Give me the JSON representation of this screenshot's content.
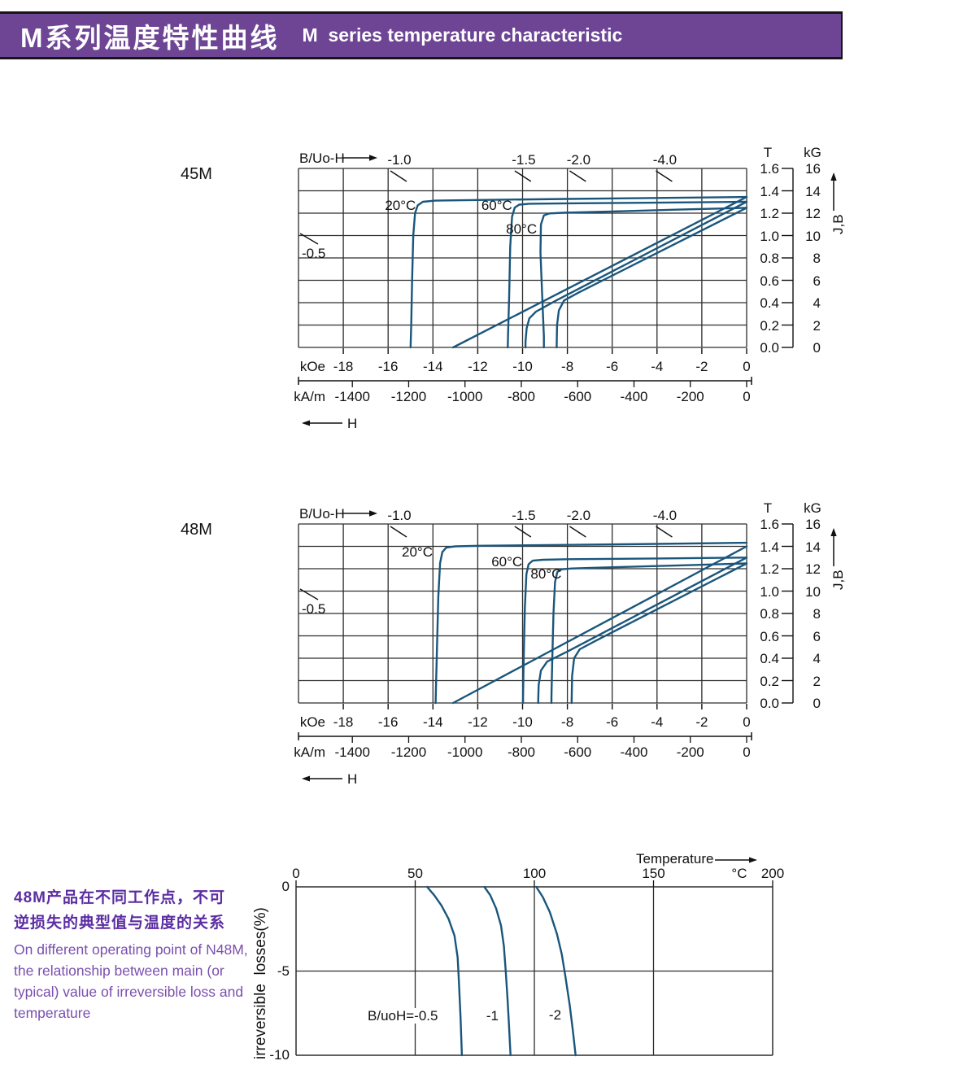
{
  "header": {
    "title_zh": "M系列温度特性曲线",
    "title_en": "M  series temperature characteristic"
  },
  "colors": {
    "banner_bg": "#6e4595",
    "banner_text": "#ffffff",
    "curve": "#1a567c",
    "grid": "#2d2d2d",
    "axis_text": "#111111",
    "note_zh": "#5b2da2",
    "note_en": "#7a4fae"
  },
  "bh_axis": {
    "load_label": "B/Uo-H",
    "side_load_label": "-0.5",
    "x_unit_label": "kOe",
    "x_ticks": [
      -18,
      -16,
      -14,
      -12,
      -10,
      -8,
      -6,
      -4,
      -2,
      0
    ],
    "x2_unit_label": "kA/m",
    "x2_ticks": [
      -1400,
      -1200,
      -1000,
      -800,
      -600,
      -400,
      -200,
      0
    ],
    "t_header": "T",
    "t_ticks": [
      "1.6",
      "1.4",
      "1.2",
      "1.0",
      "0.8",
      "0.6",
      "0.4",
      "0.2",
      "0.0"
    ],
    "kg_header": "kG",
    "kg_ticks": [
      "16",
      "14",
      "12",
      "10",
      "8",
      "6",
      "4",
      "2",
      "0"
    ],
    "jb_label": "J,B",
    "h_label": "H"
  },
  "chart_data": [
    {
      "id": "45M",
      "type": "line",
      "title": "45M demagnetization curves (J,B vs H)",
      "grade_label": "45M",
      "x_range_kOe": [
        -20,
        0
      ],
      "y_range_T": [
        0,
        1.6
      ],
      "load_lines": [
        {
          "label": "-1.0",
          "h_kOe": -15.5
        },
        {
          "label": "-1.5",
          "h_kOe": -9.95
        },
        {
          "label": "-2.0",
          "h_kOe": -7.5
        },
        {
          "label": "-4.0",
          "h_kOe": -3.65
        }
      ],
      "temp_labels": [
        {
          "text": "20°C",
          "h": -15.45,
          "t": 1.27
        },
        {
          "text": "60°C",
          "h": -11.15,
          "t": 1.27
        },
        {
          "text": "80°C",
          "h": -10.05,
          "t": 1.06
        }
      ],
      "series": [
        {
          "name": "J-20C",
          "points": [
            [
              0,
              1.345
            ],
            [
              -4,
              1.336
            ],
            [
              -8,
              1.327
            ],
            [
              -12,
              1.318
            ],
            [
              -13.9,
              1.312
            ],
            [
              -14.45,
              1.302
            ],
            [
              -14.68,
              1.27
            ],
            [
              -14.8,
              1.2
            ],
            [
              -14.88,
              1.0
            ],
            [
              -14.93,
              0.6
            ],
            [
              -14.97,
              0.2
            ],
            [
              -15.0,
              0
            ]
          ]
        },
        {
          "name": "J-60C",
          "points": [
            [
              0,
              1.302
            ],
            [
              -4,
              1.294
            ],
            [
              -8,
              1.288
            ],
            [
              -9.7,
              1.284
            ],
            [
              -10.15,
              1.276
            ],
            [
              -10.35,
              1.25
            ],
            [
              -10.47,
              1.17
            ],
            [
              -10.55,
              0.9
            ],
            [
              -10.6,
              0.45
            ],
            [
              -10.65,
              0.1
            ],
            [
              -10.66,
              0
            ]
          ]
        },
        {
          "name": "J-80C",
          "points": [
            [
              0,
              1.248
            ],
            [
              -3,
              1.232
            ],
            [
              -6,
              1.215
            ],
            [
              -8.2,
              1.204
            ],
            [
              -8.8,
              1.198
            ],
            [
              -9.05,
              1.18
            ],
            [
              -9.18,
              1.1
            ],
            [
              -9.2,
              0.85
            ],
            [
              -9.12,
              0.45
            ],
            [
              -9.05,
              0.1
            ],
            [
              -9.05,
              0
            ]
          ]
        },
        {
          "name": "B-20C",
          "points": [
            [
              0,
              1.345
            ],
            [
              -13.1,
              0
            ]
          ]
        },
        {
          "name": "B-60C",
          "points": [
            [
              0,
              1.302
            ],
            [
              -8.5,
              0.42
            ],
            [
              -9.4,
              0.32
            ],
            [
              -9.7,
              0.26
            ],
            [
              -9.82,
              0.17
            ],
            [
              -9.87,
              0.05
            ],
            [
              -9.87,
              0
            ]
          ]
        },
        {
          "name": "B-80C",
          "points": [
            [
              0,
              1.248
            ],
            [
              -7.5,
              0.49
            ],
            [
              -8.15,
              0.42
            ],
            [
              -8.38,
              0.33
            ],
            [
              -8.46,
              0.2
            ],
            [
              -8.48,
              0
            ]
          ]
        }
      ]
    },
    {
      "id": "48M",
      "type": "line",
      "title": "48M demagnetization curves (J,B vs H)",
      "grade_label": "48M",
      "x_range_kOe": [
        -20,
        0
      ],
      "y_range_T": [
        0,
        1.6
      ],
      "load_lines": [
        {
          "label": "-1.0",
          "h_kOe": -15.5
        },
        {
          "label": "-1.5",
          "h_kOe": -9.95
        },
        {
          "label": "-2.0",
          "h_kOe": -7.5
        },
        {
          "label": "-4.0",
          "h_kOe": -3.65
        }
      ],
      "temp_labels": [
        {
          "text": "20°C",
          "h": -14.7,
          "t": 1.35
        },
        {
          "text": "60°C",
          "h": -10.7,
          "t": 1.265
        },
        {
          "text": "80°C",
          "h": -8.95,
          "t": 1.155
        }
      ],
      "series": [
        {
          "name": "J-20C",
          "points": [
            [
              0,
              1.432
            ],
            [
              -4,
              1.422
            ],
            [
              -8,
              1.413
            ],
            [
              -12,
              1.405
            ],
            [
              -13.0,
              1.4
            ],
            [
              -13.4,
              1.39
            ],
            [
              -13.58,
              1.35
            ],
            [
              -13.68,
              1.25
            ],
            [
              -13.76,
              0.95
            ],
            [
              -13.82,
              0.5
            ],
            [
              -13.87,
              0.1
            ],
            [
              -13.88,
              0
            ]
          ]
        },
        {
          "name": "J-60C",
          "points": [
            [
              0,
              1.3
            ],
            [
              -4,
              1.292
            ],
            [
              -8,
              1.285
            ],
            [
              -9.1,
              1.28
            ],
            [
              -9.55,
              1.272
            ],
            [
              -9.73,
              1.24
            ],
            [
              -9.83,
              1.15
            ],
            [
              -9.9,
              0.85
            ],
            [
              -9.95,
              0.4
            ],
            [
              -9.98,
              0.05
            ],
            [
              -9.98,
              0
            ]
          ]
        },
        {
          "name": "J-80C",
          "points": [
            [
              0,
              1.247
            ],
            [
              -3,
              1.23
            ],
            [
              -6,
              1.213
            ],
            [
              -7.8,
              1.202
            ],
            [
              -8.25,
              1.195
            ],
            [
              -8.45,
              1.17
            ],
            [
              -8.55,
              1.08
            ],
            [
              -8.62,
              0.8
            ],
            [
              -8.68,
              0.35
            ],
            [
              -8.71,
              0.05
            ],
            [
              -8.71,
              0
            ]
          ]
        },
        {
          "name": "B-20C",
          "points": [
            [
              0,
              1.4
            ],
            [
              -13.1,
              0
            ]
          ]
        },
        {
          "name": "B-60C",
          "points": [
            [
              0,
              1.3
            ],
            [
              -8.0,
              0.46
            ],
            [
              -8.9,
              0.37
            ],
            [
              -9.18,
              0.29
            ],
            [
              -9.28,
              0.16
            ],
            [
              -9.3,
              0.04
            ],
            [
              -9.3,
              0
            ]
          ]
        },
        {
          "name": "B-80C",
          "points": [
            [
              0,
              1.247
            ],
            [
              -6.8,
              0.55
            ],
            [
              -7.45,
              0.48
            ],
            [
              -7.7,
              0.4
            ],
            [
              -7.79,
              0.24
            ],
            [
              -7.81,
              0
            ]
          ]
        }
      ]
    },
    {
      "id": "irreversible-loss",
      "type": "line",
      "title": "Irreversible losses vs temperature",
      "x_label": "Temperature",
      "x_unit": "°C",
      "x_ticks": [
        0,
        50,
        100,
        150,
        200
      ],
      "x_range": [
        0,
        200
      ],
      "y_label": "irreversible  losses(%)",
      "y_ticks": [
        0,
        -5,
        -10
      ],
      "y_range": [
        -10,
        0
      ],
      "unit_pos_c": 186,
      "series": [
        {
          "name": "B/uoH=-0.5",
          "points": [
            [
              55,
              0
            ],
            [
              58,
              -0.5
            ],
            [
              61,
              -1.1
            ],
            [
              64,
              -1.9
            ],
            [
              66.5,
              -2.9
            ],
            [
              67.8,
              -4.2
            ],
            [
              68.3,
              -5.5
            ],
            [
              69,
              -7.7
            ],
            [
              69.6,
              -10
            ]
          ]
        },
        {
          "name": "-1",
          "points": [
            [
              79,
              0
            ],
            [
              81.5,
              -0.5
            ],
            [
              84,
              -1.3
            ],
            [
              86,
              -2.3
            ],
            [
              87.2,
              -3.5
            ],
            [
              88,
              -5
            ],
            [
              88.8,
              -6.8
            ],
            [
              89.4,
              -8.3
            ],
            [
              90,
              -10
            ]
          ]
        },
        {
          "name": "-2",
          "points": [
            [
              100.8,
              0
            ],
            [
              103.5,
              -0.6
            ],
            [
              106.5,
              -1.5
            ],
            [
              109.5,
              -2.8
            ],
            [
              111.5,
              -4
            ],
            [
              113,
              -5.3
            ],
            [
              114.8,
              -7
            ],
            [
              116.2,
              -8.6
            ],
            [
              117.3,
              -10
            ]
          ]
        }
      ],
      "curve_labels": [
        {
          "text": "B/uoH=-0.5",
          "x_c": 44.8,
          "y_pct": -7.68
        },
        {
          "text": "-1",
          "x_c": 82.4,
          "y_pct": -7.68
        },
        {
          "text": "-2",
          "x_c": 108.7,
          "y_pct": -7.63
        }
      ]
    }
  ],
  "side_note": {
    "zh": [
      "48M产品在不同工作点，不可",
      "逆损失的典型值与温度的关系"
    ],
    "en": [
      "On different operating point of N48M,",
      "the relationship between main (or",
      "typical) value of irreversible loss and",
      "temperature"
    ]
  }
}
